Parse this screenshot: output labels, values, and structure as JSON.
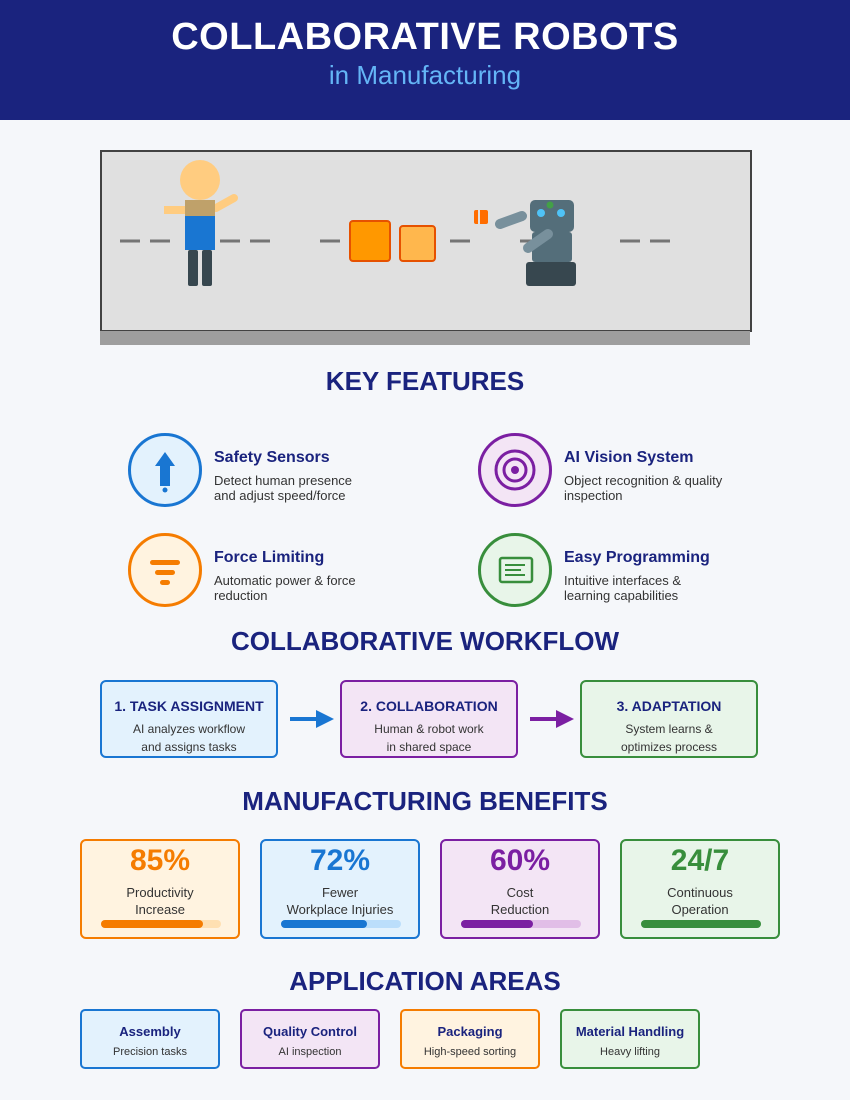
{
  "header": {
    "title": "COLLABORATIVE ROBOTS",
    "subtitle": "in Manufacturing"
  },
  "sections": {
    "features": "KEY FEATURES",
    "workflow": "COLLABORATIVE WORKFLOW",
    "benefits": "MANUFACTURING BENEFITS",
    "applications": "APPLICATION AREAS"
  },
  "features": [
    {
      "title": "Safety Sensors",
      "desc": "Detect human presence and adjust speed/force",
      "icon": "arrow-up-icon",
      "color": "#1976d2"
    },
    {
      "title": "AI Vision System",
      "desc": "Object recognition & quality inspection",
      "icon": "target-icon",
      "color": "#7b1fa2"
    },
    {
      "title": "Force Limiting",
      "desc": "Automatic power & force reduction",
      "icon": "filter-icon",
      "color": "#f57c00"
    },
    {
      "title": "Easy Programming",
      "desc": "Intuitive interfaces & learning capabilities",
      "icon": "document-icon",
      "color": "#388e3c"
    }
  ],
  "workflow": [
    {
      "title": "1. TASK ASSIGNMENT",
      "line1": "AI analyzes workflow",
      "line2": "and assigns tasks"
    },
    {
      "title": "2. COLLABORATION",
      "line1": "Human & robot work",
      "line2": "in shared space"
    },
    {
      "title": "3. ADAPTATION",
      "line1": "System learns &",
      "line2": "optimizes process"
    }
  ],
  "benefits": [
    {
      "value": "85%",
      "line1": "Productivity",
      "line2": "Increase",
      "fill": 0.85,
      "color": "#f57c00"
    },
    {
      "value": "72%",
      "line1": "Fewer",
      "line2": "Workplace Injuries",
      "fill": 0.72,
      "color": "#1976d2"
    },
    {
      "value": "60%",
      "line1": "Cost",
      "line2": "Reduction",
      "fill": 0.6,
      "color": "#7b1fa2"
    },
    {
      "value": "24/7",
      "line1": "Continuous",
      "line2": "Operation",
      "fill": 1.0,
      "color": "#388e3c"
    }
  ],
  "applications": [
    {
      "title": "Assembly",
      "desc": "Precision tasks"
    },
    {
      "title": "Quality Control",
      "desc": "AI inspection"
    },
    {
      "title": "Packaging",
      "desc": "High-speed sorting"
    },
    {
      "title": "Material Handling",
      "desc": "Heavy lifting"
    }
  ]
}
